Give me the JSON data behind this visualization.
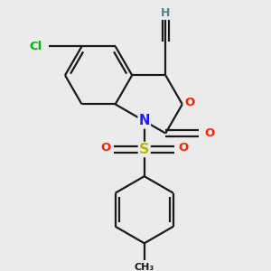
{
  "background_color": "#ebebeb",
  "bond_color": "#1a1a1a",
  "bond_lw": 1.6,
  "atom_colors": {
    "H": "#4a8888",
    "C": "#1a1a1a",
    "Cl": "#00bb00",
    "N": "#1a1aff",
    "O": "#ff2200",
    "S": "#bbbb00"
  },
  "fs": 9.5,
  "figsize": [
    3.0,
    3.0
  ],
  "dpi": 100
}
